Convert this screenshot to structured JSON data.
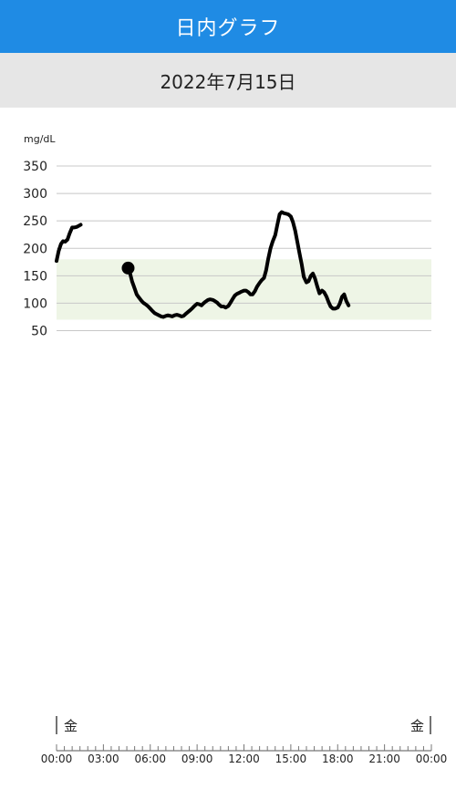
{
  "header": {
    "title": "日内グラフ"
  },
  "date_label": "2022年7月15日",
  "chart_data": {
    "type": "line",
    "title": "",
    "ylabel": "mg/dL",
    "xlabel": "",
    "ylim": [
      50,
      350
    ],
    "yticks": [
      50,
      100,
      150,
      200,
      250,
      300,
      350
    ],
    "xlim": [
      "00:00",
      "24:00"
    ],
    "xtick_labels": [
      "00:00",
      "03:00",
      "06:00",
      "09:00",
      "12:00",
      "15:00",
      "18:00",
      "21:00",
      "00:00"
    ],
    "day_labels": {
      "start": "金",
      "end": "金"
    },
    "target_range": [
      70,
      180
    ],
    "colors": {
      "line": "#000000",
      "target_fill": "#eef5e6",
      "grid": "#c8c8c8"
    },
    "series": [
      {
        "values_by_segment": [
          [
            [
              "00:00",
              177
            ],
            [
              "00:08",
              195
            ],
            [
              "00:17",
              208
            ],
            [
              "00:25",
              213
            ],
            [
              "00:33",
              212
            ],
            [
              "00:42",
              216
            ],
            [
              "00:50",
              227
            ],
            [
              "01:00",
              238
            ],
            [
              "01:08",
              238
            ],
            [
              "01:17",
              239
            ],
            [
              "01:25",
              241
            ],
            [
              "01:33",
              243
            ]
          ],
          [
            [
              "04:35",
              164
            ],
            [
              "04:42",
              155
            ],
            [
              "04:50",
              140
            ],
            [
              "05:00",
              127
            ],
            [
              "05:08",
              116
            ],
            [
              "05:17",
              110
            ],
            [
              "05:25",
              105
            ],
            [
              "05:33",
              101
            ],
            [
              "05:42",
              98
            ],
            [
              "05:50",
              95
            ],
            [
              "06:00",
              90
            ],
            [
              "06:08",
              86
            ],
            [
              "06:17",
              82
            ],
            [
              "06:25",
              80
            ],
            [
              "06:33",
              78
            ],
            [
              "06:42",
              76
            ],
            [
              "06:50",
              75
            ],
            [
              "07:00",
              77
            ],
            [
              "07:08",
              78
            ],
            [
              "07:17",
              77
            ],
            [
              "07:25",
              76
            ],
            [
              "07:33",
              78
            ],
            [
              "07:42",
              79
            ],
            [
              "07:50",
              78
            ],
            [
              "08:00",
              76
            ],
            [
              "08:08",
              77
            ],
            [
              "08:17",
              81
            ],
            [
              "08:25",
              84
            ],
            [
              "08:33",
              87
            ],
            [
              "08:42",
              91
            ],
            [
              "08:50",
              95
            ],
            [
              "09:00",
              99
            ],
            [
              "09:08",
              98
            ],
            [
              "09:17",
              96
            ],
            [
              "09:25",
              100
            ],
            [
              "09:33",
              103
            ],
            [
              "09:42",
              106
            ],
            [
              "09:50",
              107
            ],
            [
              "10:00",
              106
            ],
            [
              "10:08",
              104
            ],
            [
              "10:17",
              101
            ],
            [
              "10:25",
              97
            ],
            [
              "10:33",
              94
            ],
            [
              "10:42",
              94
            ],
            [
              "10:50",
              92
            ],
            [
              "11:00",
              95
            ],
            [
              "11:08",
              101
            ],
            [
              "11:17",
              108
            ],
            [
              "11:25",
              114
            ],
            [
              "11:33",
              117
            ],
            [
              "11:42",
              119
            ],
            [
              "11:50",
              121
            ],
            [
              "12:00",
              123
            ],
            [
              "12:08",
              123
            ],
            [
              "12:17",
              120
            ],
            [
              "12:25",
              116
            ],
            [
              "12:33",
              116
            ],
            [
              "12:42",
              122
            ],
            [
              "12:50",
              130
            ],
            [
              "13:00",
              137
            ],
            [
              "13:08",
              142
            ],
            [
              "13:17",
              146
            ],
            [
              "13:25",
              160
            ],
            [
              "13:33",
              180
            ],
            [
              "13:42",
              200
            ],
            [
              "13:50",
              212
            ],
            [
              "14:00",
              224
            ],
            [
              "14:08",
              242
            ],
            [
              "14:17",
              262
            ],
            [
              "14:25",
              266
            ],
            [
              "14:33",
              264
            ],
            [
              "14:42",
              263
            ],
            [
              "14:50",
              262
            ],
            [
              "15:00",
              258
            ],
            [
              "15:08",
              248
            ],
            [
              "15:17",
              232
            ],
            [
              "15:25",
              212
            ],
            [
              "15:33",
              192
            ],
            [
              "15:42",
              170
            ],
            [
              "15:50",
              148
            ],
            [
              "16:00",
              138
            ],
            [
              "16:08",
              140
            ],
            [
              "16:17",
              150
            ],
            [
              "16:25",
              154
            ],
            [
              "16:33",
              145
            ],
            [
              "16:42",
              130
            ],
            [
              "16:50",
              118
            ],
            [
              "17:00",
              123
            ],
            [
              "17:08",
              120
            ],
            [
              "17:17",
              112
            ],
            [
              "17:25",
              102
            ],
            [
              "17:33",
              94
            ],
            [
              "17:42",
              90
            ],
            [
              "17:50",
              90
            ],
            [
              "18:00",
              92
            ],
            [
              "18:08",
              99
            ],
            [
              "18:17",
              112
            ],
            [
              "18:25",
              116
            ],
            [
              "18:33",
              104
            ],
            [
              "18:42",
              96
            ]
          ]
        ],
        "marker": [
          "04:35",
          164
        ]
      }
    ]
  }
}
